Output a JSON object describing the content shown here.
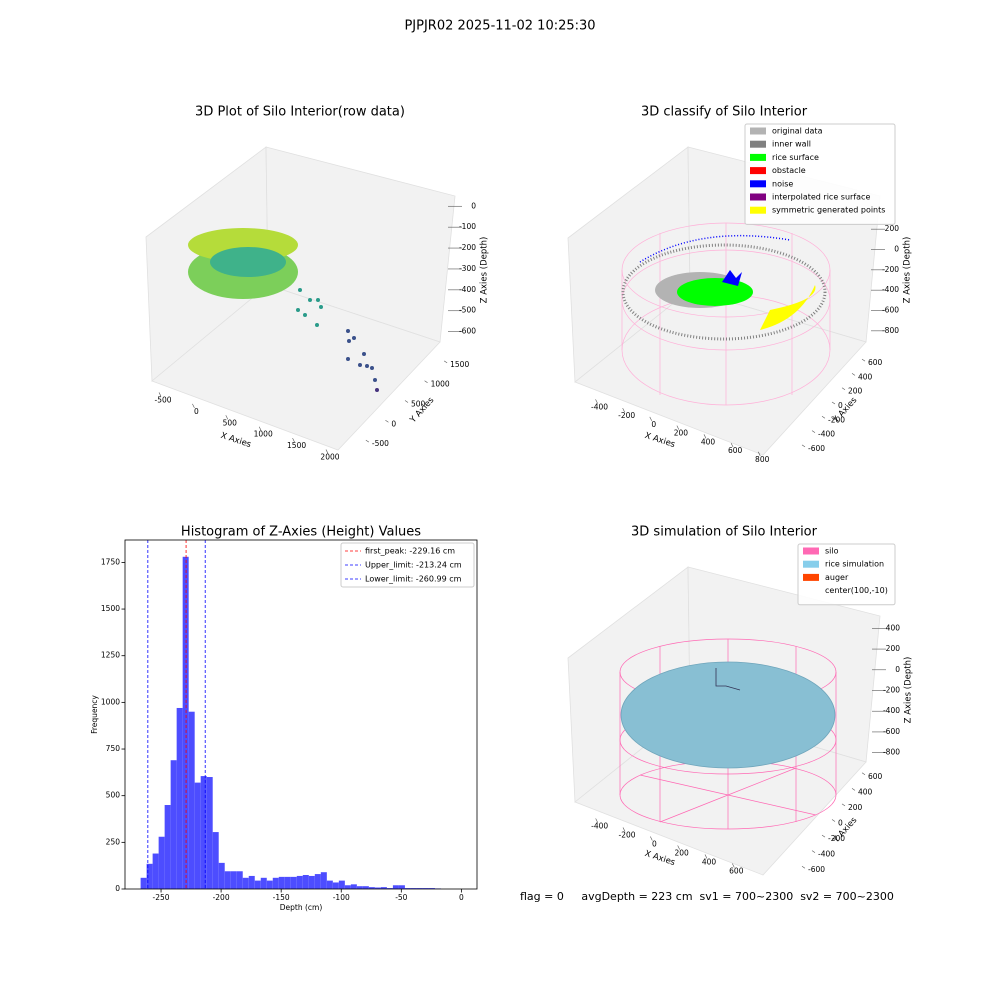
{
  "title": "PJPJR02 2025-11-02 10:25:30",
  "footer": "flag = 0     avgDepth = 223 cm  sv1 = 700~2300  sv2 = 700~2300",
  "chart_data": [
    {
      "type": "scatter3d",
      "title": "3D Plot of Silo Interior(row data)",
      "xlabel": "X Axies",
      "ylabel": "Y Axies",
      "zlabel": "Z Axies (Depth)",
      "xlim": [
        -650,
        2150
      ],
      "xticks": [
        -500,
        0,
        500,
        1000,
        1500,
        2000
      ],
      "ylim": [
        -650,
        1650
      ],
      "yticks": [
        -500,
        0,
        500,
        1000,
        1500
      ],
      "zlim": [
        -640,
        30
      ],
      "zticks": [
        0,
        -100,
        -200,
        -300,
        -400,
        -500,
        -600
      ]
    },
    {
      "type": "scatter3d",
      "title": "3D classify of Silo Interior",
      "xlabel": "X Axies",
      "ylabel": "Y Axies",
      "zlabel": "Z Axies (Depth)",
      "xlim": [
        -500,
        850
      ],
      "xticks": [
        -400,
        -200,
        0,
        200,
        400,
        600,
        800
      ],
      "ylim": [
        -700,
        700
      ],
      "yticks": [
        -600,
        -400,
        -200,
        0,
        200,
        400,
        600
      ],
      "zlim": [
        -900,
        300
      ],
      "zticks": [
        200,
        0,
        -200,
        -400,
        -600,
        -800
      ],
      "legend_position": "upper right",
      "legend": [
        {
          "name": "original data",
          "color": "#b3b3b3"
        },
        {
          "name": "inner wall",
          "color": "#808080"
        },
        {
          "name": "rice surface",
          "color": "#00ff00"
        },
        {
          "name": "obstacle",
          "color": "#ff0000"
        },
        {
          "name": "noise",
          "color": "#0000ff"
        },
        {
          "name": "interpolated rice surface",
          "color": "#800080"
        },
        {
          "name": "symmetric generated points",
          "color": "#ffff00"
        }
      ]
    },
    {
      "type": "histogram",
      "title": "Histogram of Z-Axies (Height) Values",
      "xlabel": "Depth (cm)",
      "ylabel": "Frequency",
      "color": "#4d4dff",
      "bins": [
        -267,
        -262,
        -257,
        -252,
        -247,
        -242,
        -237,
        -232,
        -227,
        -222,
        -217,
        -212,
        -207,
        -202,
        -197,
        -192,
        -187,
        -182,
        -177,
        -172,
        -167,
        -162,
        -157,
        -152,
        -147,
        -142,
        -137,
        -132,
        -127,
        -122,
        -117,
        -112,
        -107,
        -102,
        -97,
        -92,
        -87,
        -82,
        -77,
        -72,
        -67,
        -62,
        -57,
        -52,
        -47,
        -42,
        -37,
        -32,
        -27,
        -22,
        -17
      ],
      "values": [
        60,
        135,
        190,
        280,
        450,
        690,
        970,
        1780,
        950,
        570,
        605,
        600,
        305,
        140,
        95,
        95,
        95,
        60,
        70,
        45,
        60,
        45,
        60,
        65,
        65,
        65,
        70,
        75,
        70,
        80,
        90,
        45,
        35,
        45,
        20,
        25,
        15,
        15,
        10,
        8,
        10,
        5,
        20,
        20,
        5,
        5,
        5,
        5,
        5,
        3
      ],
      "xlim": [
        -280,
        13
      ],
      "xticks": [
        -250,
        -200,
        -150,
        -100,
        -50,
        0
      ],
      "ylim": [
        0,
        1870
      ],
      "yticks": [
        0,
        250,
        500,
        750,
        1000,
        1250,
        1500,
        1750
      ],
      "legend_position": "upper right",
      "vlines": [
        {
          "name": "first_peak: -229.16 cm",
          "value": -229.16,
          "color": "#ff0000"
        },
        {
          "name": "Upper_limit: -213.24 cm",
          "value": -213.24,
          "color": "#0000ff"
        },
        {
          "name": "Lower_limit: -260.99 cm",
          "value": -260.99,
          "color": "#0000ff"
        }
      ]
    },
    {
      "type": "scatter3d",
      "title": "3D simulation of Silo Interior",
      "xlabel": "X Axies",
      "ylabel": "Y Axies",
      "zlabel": "Z Axies (Depth)",
      "xlim": [
        -500,
        700
      ],
      "xticks": [
        -400,
        -200,
        0,
        200,
        400,
        600
      ],
      "ylim": [
        -700,
        700
      ],
      "yticks": [
        -600,
        -400,
        -200,
        0,
        200,
        400,
        600
      ],
      "zlim": [
        -900,
        500
      ],
      "zticks": [
        400,
        200,
        0,
        -200,
        -400,
        -600,
        -800
      ],
      "legend_position": "upper right",
      "legend": [
        {
          "name": "silo",
          "color": "#ff69b4"
        },
        {
          "name": "rice simulation",
          "color": "#87ceeb"
        },
        {
          "name": "auger",
          "color": "#ff4500"
        },
        {
          "name": "center(100,-10)"
        }
      ]
    }
  ]
}
